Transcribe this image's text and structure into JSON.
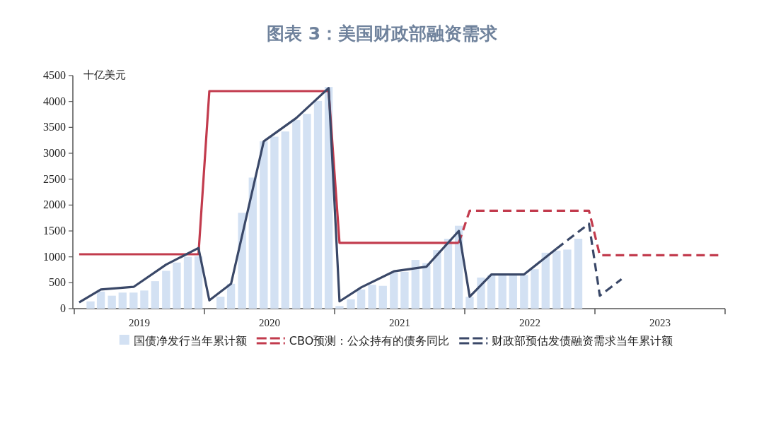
{
  "chart_data": {
    "type": "bar",
    "title": "图表 3：美国财政部融资需求",
    "ylabel": "十亿美元",
    "xlim": [
      "2019-01",
      "2024-01"
    ],
    "xticks": [
      {
        "value": "2019-01",
        "label": null
      },
      {
        "value": "2019-07",
        "label": "2019"
      },
      {
        "value": "2020-01",
        "label": null
      },
      {
        "value": "2020-07",
        "label": "2020"
      },
      {
        "value": "2021-01",
        "label": null
      },
      {
        "value": "2021-07",
        "label": "2021"
      },
      {
        "value": "2022-01",
        "label": null
      },
      {
        "value": "2022-07",
        "label": "2022"
      },
      {
        "value": "2023-01",
        "label": null
      },
      {
        "value": "2023-07",
        "label": "2023"
      },
      {
        "value": "2024-01",
        "label": null
      }
    ],
    "ylim": [
      0,
      4500
    ],
    "yticks": [
      0,
      500,
      1000,
      1500,
      2000,
      2500,
      3000,
      3500,
      4000,
      4500
    ],
    "legend": "bottom",
    "series": [
      {
        "name": "国债净发行当年累计额",
        "color": "#d3e1f3",
        "x": [
          "2019-02-15",
          "2019-03-15",
          "2019-04-15",
          "2019-05-15",
          "2019-06-15",
          "2019-07-15",
          "2019-08-15",
          "2019-09-15",
          "2019-10-15",
          "2019-11-15",
          "2019-12-15",
          "2020-02-15",
          "2020-03-15",
          "2020-04-15",
          "2020-05-15",
          "2020-06-15",
          "2020-07-15",
          "2020-08-15",
          "2020-09-15",
          "2020-10-15",
          "2020-11-15",
          "2020-12-15",
          "2021-01-15",
          "2021-02-15",
          "2021-03-15",
          "2021-04-15",
          "2021-05-15",
          "2021-06-15",
          "2021-07-15",
          "2021-08-15",
          "2021-09-15",
          "2021-10-15",
          "2021-11-15",
          "2021-12-15",
          "2022-01-15",
          "2022-02-15",
          "2022-03-15",
          "2022-04-15",
          "2022-05-15",
          "2022-06-15",
          "2022-07-15",
          "2022-08-15",
          "2022-09-15",
          "2022-10-15",
          "2022-11-15"
        ],
        "values": [
          140,
          330,
          250,
          310,
          310,
          350,
          530,
          730,
          890,
          1000,
          1010,
          230,
          480,
          1850,
          2530,
          3230,
          3320,
          3420,
          3640,
          3760,
          4010,
          4280,
          50,
          180,
          370,
          460,
          440,
          700,
          710,
          940,
          880,
          1130,
          1350,
          1600,
          230,
          600,
          650,
          650,
          650,
          650,
          760,
          1080,
          1120,
          1140,
          1350
        ]
      },
      {
        "type": "line",
        "color": "#c23b4d",
        "line_style": "solid",
        "x": [
          "2019-01-15",
          "2019-12-15",
          "2020-01-15",
          "2020-12-15",
          "2021-01-15",
          "2021-12-15"
        ],
        "values": [
          1050,
          1050,
          4200,
          4200,
          1270,
          1270
        ]
      },
      {
        "type": "line",
        "name": "CBO预测：公众持有的债务同比",
        "color": "#c23b4d",
        "line_style": "dashed",
        "x": [
          "2021-12-15",
          "2022-01-15",
          "2022-12-15",
          "2023-01-15",
          "2023-12-15"
        ],
        "values": [
          1270,
          1890,
          1890,
          1030,
          1030
        ]
      },
      {
        "type": "line",
        "color": "#3a4868",
        "line_style": "solid",
        "x": [
          "2019-01-15",
          "2019-03-15",
          "2019-06-15",
          "2019-09-15",
          "2019-12-15",
          "2020-01-15",
          "2020-03-15",
          "2020-06-15",
          "2020-09-15",
          "2020-12-15",
          "2021-01-15",
          "2021-03-15",
          "2021-06-15",
          "2021-09-15",
          "2021-12-15",
          "2022-01-15",
          "2022-03-15",
          "2022-06-15",
          "2022-09-15"
        ],
        "values": [
          120,
          370,
          420,
          850,
          1170,
          160,
          480,
          3230,
          3680,
          4260,
          140,
          410,
          720,
          810,
          1500,
          230,
          660,
          660,
          1160
        ]
      },
      {
        "type": "line",
        "name": "财政部预估发债融资需求当年累计额",
        "color": "#3a4868",
        "line_style": "dashed",
        "x": [
          "2022-09-15",
          "2022-12-15",
          "2023-01-15",
          "2023-03-15"
        ],
        "values": [
          1160,
          1640,
          250,
          570
        ]
      }
    ]
  }
}
